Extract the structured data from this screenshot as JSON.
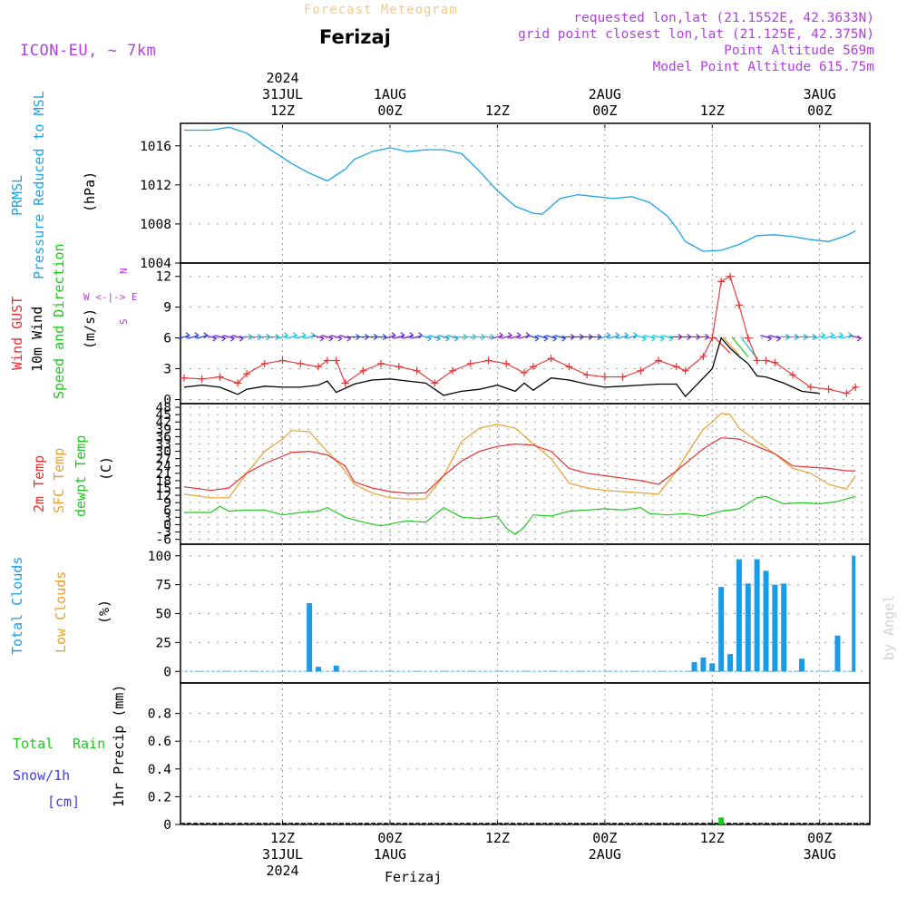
{
  "header": {
    "title": "Forecast Meteogram",
    "location": "Ferizaj",
    "model": "ICON-EU, ~ 7km",
    "requested": "requested lon,lat (21.1552E, 42.3633N)",
    "grid_point": "grid point closest lon,lat (21.125E, 42.375N)",
    "point_altitude": "Point Altitude 569m",
    "model_altitude": "Model Point Altitude 615.75m",
    "footer_location": "Ferizaj",
    "watermark": "by Angel"
  },
  "time_axis": {
    "ticks": [
      {
        "hour": 12,
        "top": [
          "2024",
          "31JUL",
          "12Z"
        ],
        "bottom": [
          "12Z",
          "31JUL",
          "2024"
        ]
      },
      {
        "hour": 24,
        "top": [
          "1AUG",
          "00Z"
        ],
        "bottom": [
          "00Z",
          "1AUG"
        ]
      },
      {
        "hour": 36,
        "top": [
          "12Z"
        ],
        "bottom": [
          "12Z"
        ]
      },
      {
        "hour": 48,
        "top": [
          "2AUG",
          "00Z"
        ],
        "bottom": [
          "00Z",
          "2AUG"
        ]
      },
      {
        "hour": 60,
        "top": [
          "12Z"
        ],
        "bottom": [
          "12Z"
        ]
      },
      {
        "hour": 72,
        "top": [
          "3AUG",
          "00Z"
        ],
        "bottom": [
          "00Z",
          "3AUG"
        ]
      }
    ]
  },
  "panel_labels": {
    "pressure": [
      "PRMSL",
      "Pressure Reduced to MSL"
    ],
    "pressure_unit": "(hPa)",
    "wind_gust": "Wind GUST",
    "wind_10m": "10m Wind",
    "wind_dir": "Speed and Direction",
    "wind_unit": "(m/s)",
    "compass_n": "N",
    "compass_s": "S",
    "compass_we": "W <-|-> E",
    "temp_2m": "2m Temp",
    "temp_sfc": "SFC Temp",
    "temp_dew": "dewpt Temp",
    "temp_unit": "(C)",
    "clouds_total": "Total Clouds",
    "clouds_low": "Low Clouds",
    "clouds_unit": "(%)",
    "rain_total": "Total",
    "rain_rain": "Rain",
    "rain_snow": "Snow/1h",
    "rain_cm": "[cm]",
    "rain_unit": "1hr Precip (mm)"
  },
  "colors": {
    "pressure": "#1aa3e8",
    "gust": "#e83030",
    "wind": "#000000",
    "t2m": "#e83030",
    "tsfc": "#e8a030",
    "tdew": "#1fc81f",
    "clouds": "#1a9be8",
    "rain": "#1fc81f",
    "header_title": "#f0c890",
    "header_info": "#b040e0",
    "grid": "#9a9a9a"
  },
  "chart_data": [
    {
      "type": "line",
      "name": "pressure",
      "ylim": [
        1004,
        1018
      ],
      "yticks": [
        1004,
        1008,
        1012,
        1016
      ],
      "x_hours_start": 1,
      "x_hours_end": 76,
      "x": [
        1,
        4,
        6,
        8,
        10,
        13,
        15,
        17,
        19,
        20,
        22,
        24,
        26,
        28,
        30,
        32,
        34,
        36,
        38,
        40,
        41,
        43,
        45,
        47,
        49,
        51,
        53,
        55,
        56,
        57,
        59,
        61,
        63,
        65,
        67,
        69,
        71,
        73,
        75,
        76
      ],
      "values": [
        1017.6,
        1017.6,
        1017.9,
        1017.3,
        1016.0,
        1014.2,
        1013.2,
        1012.4,
        1013.6,
        1014.6,
        1015.4,
        1015.8,
        1015.4,
        1015.6,
        1015.6,
        1015.2,
        1013.4,
        1011.4,
        1009.8,
        1009.1,
        1009.0,
        1010.6,
        1011.0,
        1010.8,
        1010.6,
        1010.8,
        1010.2,
        1008.8,
        1007.6,
        1006.2,
        1005.2,
        1005.3,
        1005.9,
        1006.8,
        1006.9,
        1006.7,
        1006.4,
        1006.2,
        1006.8,
        1007.3
      ]
    },
    {
      "type": "line",
      "name": "wind",
      "ylim": [
        0,
        13
      ],
      "yticks": [
        0,
        3,
        6,
        9,
        12
      ],
      "gust": {
        "x": [
          1,
          3,
          5,
          7,
          8,
          10,
          12,
          14,
          16,
          17,
          18,
          19,
          21,
          23,
          25,
          27,
          29,
          31,
          33,
          35,
          37,
          39,
          40,
          42,
          44,
          46,
          48,
          50,
          52,
          54,
          56,
          57,
          59,
          60,
          61,
          62,
          63,
          64,
          65,
          66,
          67,
          69,
          71,
          73,
          75,
          76
        ],
        "values": [
          2.1,
          2.0,
          2.2,
          1.6,
          2.5,
          3.5,
          3.8,
          3.5,
          3.2,
          3.8,
          3.8,
          1.6,
          2.8,
          3.5,
          3.2,
          2.8,
          1.6,
          2.8,
          3.5,
          3.8,
          3.5,
          2.6,
          3.2,
          4.0,
          3.2,
          2.4,
          2.2,
          2.2,
          2.8,
          3.8,
          3.2,
          2.8,
          4.2,
          6.0,
          11.5,
          12.0,
          9.2,
          6.0,
          3.8,
          3.8,
          3.6,
          2.4,
          1.2,
          1.0,
          0.6,
          1.2
        ]
      },
      "wind10m": {
        "x": [
          1,
          3,
          5,
          7,
          8,
          10,
          12,
          14,
          16,
          17,
          18,
          20,
          22,
          24,
          26,
          28,
          30,
          32,
          34,
          36,
          38,
          39,
          40,
          42,
          44,
          46,
          48,
          50,
          52,
          54,
          56,
          57,
          58,
          60,
          61,
          62,
          63,
          64,
          65,
          66,
          68,
          70,
          72
        ],
        "values": [
          1.2,
          1.4,
          1.2,
          0.5,
          1.0,
          1.3,
          1.2,
          1.2,
          1.4,
          1.8,
          0.7,
          1.5,
          1.9,
          2.0,
          1.8,
          1.6,
          0.4,
          0.8,
          1.0,
          1.4,
          0.8,
          1.6,
          0.9,
          2.1,
          1.9,
          1.5,
          1.2,
          1.3,
          1.4,
          1.5,
          1.5,
          0.3,
          1.2,
          3.0,
          6.0,
          5.0,
          4.2,
          3.5,
          2.3,
          2.2,
          1.6,
          0.8,
          0.6
        ]
      },
      "arrow_row_value": 6.1
    },
    {
      "type": "line",
      "name": "temperature",
      "ylim": [
        -6,
        48
      ],
      "yticks": [
        -6,
        -3,
        0,
        3,
        6,
        9,
        12,
        15,
        18,
        21,
        24,
        27,
        30,
        33,
        36,
        39,
        42,
        45,
        48
      ],
      "t2m": {
        "x": [
          1,
          4,
          6,
          8,
          10,
          12,
          13,
          15,
          17,
          19,
          20,
          22,
          24,
          26,
          28,
          30,
          32,
          34,
          36,
          38,
          40,
          42,
          44,
          46,
          48,
          50,
          52,
          54,
          56,
          57,
          59,
          61,
          63,
          65,
          67,
          69,
          71,
          73,
          75,
          76
        ],
        "values": [
          15.5,
          14.0,
          15.0,
          21.0,
          25.0,
          28.0,
          29.5,
          30.0,
          28.5,
          24.0,
          17.5,
          15.0,
          13.5,
          12.8,
          13.0,
          20.0,
          26.0,
          30.0,
          32.0,
          33.0,
          32.5,
          30.0,
          23.0,
          21.0,
          20.0,
          19.0,
          18.0,
          16.5,
          22.0,
          25.0,
          31.0,
          35.5,
          35.0,
          32.0,
          29.0,
          24.0,
          23.5,
          23.0,
          22.0,
          22.0
        ]
      },
      "tsfc": {
        "x": [
          1,
          4,
          6,
          8,
          10,
          12,
          13,
          15,
          17,
          19,
          20,
          22,
          24,
          26,
          28,
          30,
          32,
          34,
          36,
          38,
          40,
          42,
          44,
          46,
          48,
          50,
          52,
          54,
          56,
          57,
          59,
          60,
          61,
          62,
          63,
          65,
          67,
          69,
          71,
          73,
          75,
          76
        ],
        "values": [
          12.5,
          11.0,
          11.0,
          21.0,
          30.0,
          35.0,
          38.5,
          38.0,
          30.0,
          22.0,
          16.5,
          13.0,
          11.0,
          10.5,
          10.5,
          20.0,
          34.0,
          39.5,
          41.0,
          39.5,
          33.0,
          27.0,
          17.0,
          15.0,
          14.0,
          13.5,
          13.0,
          12.5,
          22.0,
          28.0,
          39.0,
          42.0,
          45.5,
          45.0,
          39.5,
          34.0,
          29.0,
          23.0,
          21.0,
          16.5,
          14.5,
          20.0
        ]
      },
      "tdew": {
        "x": [
          1,
          4,
          5,
          6,
          8,
          10,
          12,
          14,
          16,
          17,
          19,
          21,
          23,
          25,
          26,
          28,
          29,
          30,
          32,
          34,
          36,
          37,
          38,
          39,
          40,
          42,
          44,
          46,
          48,
          50,
          52,
          53,
          55,
          57,
          59,
          61,
          63,
          65,
          66,
          68,
          70,
          72,
          74,
          76
        ],
        "values": [
          5.0,
          5.0,
          7.5,
          5.5,
          6.0,
          6.0,
          4.0,
          5.0,
          5.5,
          7.0,
          3.0,
          1.0,
          -0.5,
          1.0,
          1.5,
          1.0,
          4.0,
          7.0,
          3.0,
          2.5,
          3.5,
          -1.5,
          -4.0,
          -1.0,
          4.0,
          3.5,
          5.5,
          6.0,
          6.5,
          6.0,
          7.0,
          4.5,
          4.0,
          4.5,
          3.5,
          5.5,
          6.5,
          11.0,
          11.5,
          8.5,
          9.0,
          8.5,
          9.5,
          11.5
        ]
      }
    },
    {
      "type": "bar",
      "name": "clouds",
      "ylim": [
        0,
        100
      ],
      "yticks": [
        0,
        25,
        50,
        75,
        100
      ],
      "x": [
        15,
        16,
        18,
        58,
        59,
        60,
        61,
        62,
        63,
        64,
        65,
        66,
        67,
        68,
        70,
        74,
        76
      ],
      "values": [
        59,
        4,
        5,
        8,
        12,
        7,
        73,
        15,
        97,
        76,
        97,
        87,
        75,
        76,
        11,
        31,
        100
      ],
      "baseline_marks": [
        1,
        76,
        29
      ]
    },
    {
      "type": "bar",
      "name": "precip",
      "ylim": [
        0,
        1.0
      ],
      "yticks": [
        0,
        0.2,
        0.4,
        0.6,
        0.8
      ],
      "x": [
        61
      ],
      "values": [
        0.05
      ]
    }
  ]
}
